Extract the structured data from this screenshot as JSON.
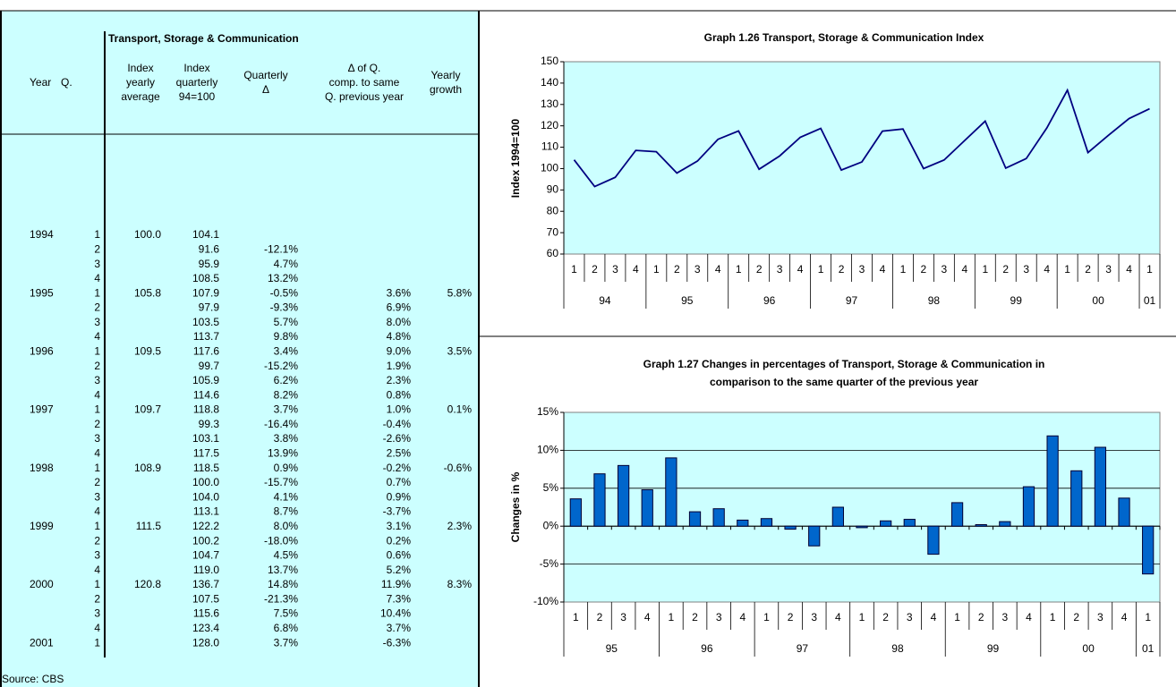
{
  "table": {
    "title": "Transport, Storage & Communication",
    "header": [
      [
        "Year"
      ],
      [
        "Q."
      ],
      [
        "Index",
        "yearly",
        "average"
      ],
      [
        "Index",
        "quarterly",
        "94=100"
      ],
      [
        "Quarterly",
        "Δ"
      ],
      [
        "Δ of Q.",
        "comp. to same",
        "Q. previous year"
      ],
      [
        "Yearly",
        "growth"
      ]
    ],
    "rows": [
      [
        "1994",
        "1",
        "100.0",
        "104.1",
        null,
        null,
        null
      ],
      [
        null,
        "2",
        null,
        "91.6",
        "-12.1%",
        null,
        null
      ],
      [
        null,
        "3",
        null,
        "95.9",
        "4.7%",
        null,
        null
      ],
      [
        null,
        "4",
        null,
        "108.5",
        "13.2%",
        null,
        null
      ],
      [
        "1995",
        "1",
        "105.8",
        "107.9",
        "-0.5%",
        "3.6%",
        "5.8%"
      ],
      [
        null,
        "2",
        null,
        "97.9",
        "-9.3%",
        "6.9%",
        null
      ],
      [
        null,
        "3",
        null,
        "103.5",
        "5.7%",
        "8.0%",
        null
      ],
      [
        null,
        "4",
        null,
        "113.7",
        "9.8%",
        "4.8%",
        null
      ],
      [
        "1996",
        "1",
        "109.5",
        "117.6",
        "3.4%",
        "9.0%",
        "3.5%"
      ],
      [
        null,
        "2",
        null,
        "99.7",
        "-15.2%",
        "1.9%",
        null
      ],
      [
        null,
        "3",
        null,
        "105.9",
        "6.2%",
        "2.3%",
        null
      ],
      [
        null,
        "4",
        null,
        "114.6",
        "8.2%",
        "0.8%",
        null
      ],
      [
        "1997",
        "1",
        "109.7",
        "118.8",
        "3.7%",
        "1.0%",
        "0.1%"
      ],
      [
        null,
        "2",
        null,
        "99.3",
        "-16.4%",
        "-0.4%",
        null
      ],
      [
        null,
        "3",
        null,
        "103.1",
        "3.8%",
        "-2.6%",
        null
      ],
      [
        null,
        "4",
        null,
        "117.5",
        "13.9%",
        "2.5%",
        null
      ],
      [
        "1998",
        "1",
        "108.9",
        "118.5",
        "0.9%",
        "-0.2%",
        "-0.6%"
      ],
      [
        null,
        "2",
        null,
        "100.0",
        "-15.7%",
        "0.7%",
        null
      ],
      [
        null,
        "3",
        null,
        "104.0",
        "4.1%",
        "0.9%",
        null
      ],
      [
        null,
        "4",
        null,
        "113.1",
        "8.7%",
        "-3.7%",
        null
      ],
      [
        "1999",
        "1",
        "111.5",
        "122.2",
        "8.0%",
        "3.1%",
        "2.3%"
      ],
      [
        null,
        "2",
        null,
        "100.2",
        "-18.0%",
        "0.2%",
        null
      ],
      [
        null,
        "3",
        null,
        "104.7",
        "4.5%",
        "0.6%",
        null
      ],
      [
        null,
        "4",
        null,
        "119.0",
        "13.7%",
        "5.2%",
        null
      ],
      [
        "2000",
        "1",
        "120.8",
        "136.7",
        "14.8%",
        "11.9%",
        "8.3%"
      ],
      [
        null,
        "2",
        null,
        "107.5",
        "-21.3%",
        "7.3%",
        null
      ],
      [
        null,
        "3",
        null,
        "115.6",
        "7.5%",
        "10.4%",
        null
      ],
      [
        null,
        "4",
        null,
        "123.4",
        "6.8%",
        "3.7%",
        null
      ],
      [
        "2001",
        "1",
        null,
        "128.0",
        "3.7%",
        "-6.3%",
        null
      ]
    ],
    "source": "Source: CBS"
  },
  "chart_data": [
    {
      "type": "line",
      "title": [
        "Graph 1.26 Transport, Storage & Communication Index"
      ],
      "y_label": "Index 1994=100",
      "categories": [
        "1",
        "2",
        "3",
        "4",
        "1",
        "2",
        "3",
        "4",
        "1",
        "2",
        "3",
        "4",
        "1",
        "2",
        "3",
        "4",
        "1",
        "2",
        "3",
        "4",
        "1",
        "2",
        "3",
        "4",
        "1",
        "2",
        "3",
        "4",
        "1"
      ],
      "year_labels": [
        "94",
        "95",
        "96",
        "97",
        "98",
        "99",
        "00",
        "01"
      ],
      "values": [
        104.1,
        91.6,
        95.9,
        108.5,
        107.9,
        97.9,
        103.5,
        113.7,
        117.6,
        99.7,
        105.9,
        114.6,
        118.8,
        99.3,
        103.1,
        117.5,
        118.5,
        100.0,
        104.0,
        113.1,
        122.2,
        100.2,
        104.7,
        119.0,
        136.7,
        107.5,
        115.6,
        123.4,
        128.0
      ],
      "color": "#000080",
      "ylim": [
        60,
        150
      ],
      "yticks": [
        60,
        70,
        80,
        90,
        100,
        110,
        120,
        130,
        140,
        150
      ],
      "grid": false
    },
    {
      "type": "bar",
      "title": [
        "Graph 1.27 Changes in percentages of Transport, Storage & Communication in",
        "comparison to the same quarter of the previous year"
      ],
      "y_label": "Changes in %",
      "categories": [
        "1",
        "2",
        "3",
        "4",
        "1",
        "2",
        "3",
        "4",
        "1",
        "2",
        "3",
        "4",
        "1",
        "2",
        "3",
        "4",
        "1",
        "2",
        "3",
        "4",
        "1",
        "2",
        "3",
        "4",
        "1"
      ],
      "year_labels": [
        "95",
        "96",
        "97",
        "98",
        "99",
        "00",
        "01"
      ],
      "values": [
        3.6,
        6.9,
        8.0,
        4.8,
        9.0,
        1.9,
        2.3,
        0.8,
        1.0,
        -0.4,
        -2.6,
        2.5,
        -0.2,
        0.7,
        0.9,
        -3.7,
        3.1,
        0.2,
        0.6,
        5.2,
        11.9,
        7.3,
        10.4,
        3.7,
        -6.3
      ],
      "color": "#0066cc",
      "ylim": [
        -10,
        15
      ],
      "yticks": [
        {
          "value": -10,
          "label": "-10%"
        },
        {
          "value": -5,
          "label": "-5%"
        },
        {
          "value": 0,
          "label": "0%"
        },
        {
          "value": 5,
          "label": "5%"
        },
        {
          "value": 10,
          "label": "10%"
        },
        {
          "value": 15,
          "label": "15%"
        }
      ],
      "grid": true
    }
  ]
}
